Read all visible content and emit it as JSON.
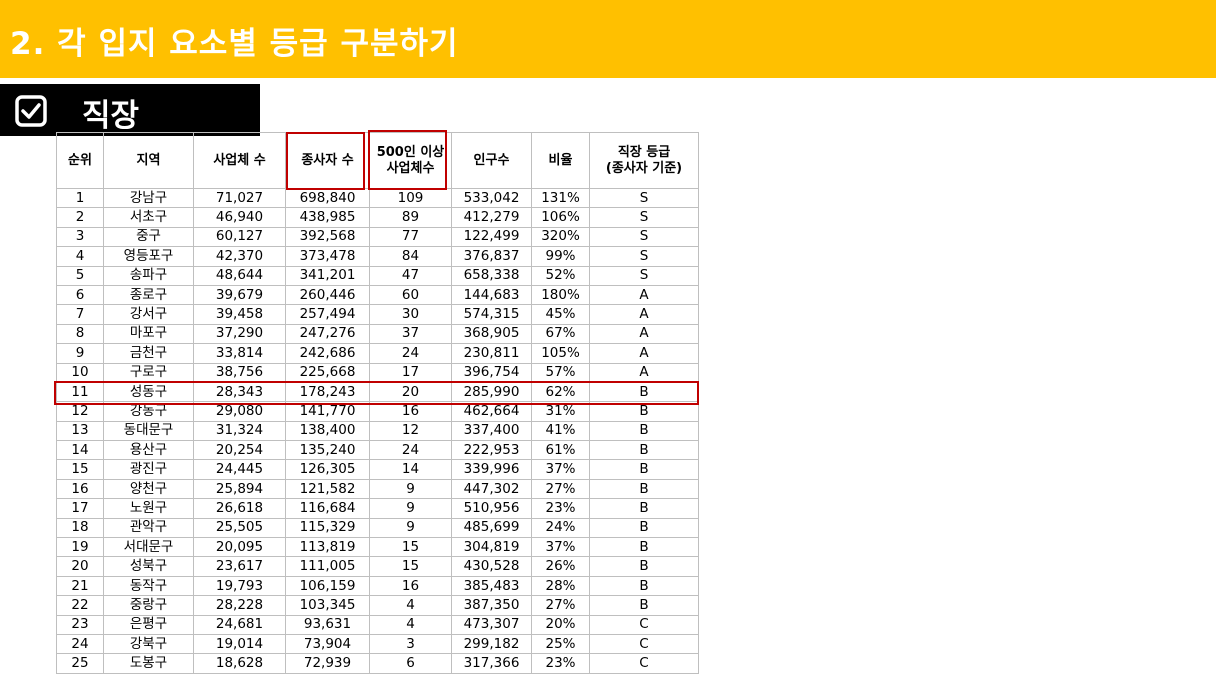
{
  "slide": {
    "title": "2. 각 입지 요소별 등급 구분하기",
    "section_label": "직장",
    "accent_color": "#FFC000",
    "highlight_color": "#C00000",
    "section_icon": "checkbox-checked-icon"
  },
  "table": {
    "headers": [
      "순위",
      "지역",
      "사업체 수",
      "종사자 수",
      "500인 이상\n사업체수",
      "인구수",
      "비율",
      "직장 등급\n(종사자 기준)"
    ],
    "highlighted_columns": [
      "종사자 수",
      "500인 이상 사업체수"
    ],
    "highlighted_row_rank": "11",
    "rows": [
      [
        "1",
        "강남구",
        "71,027",
        "698,840",
        "109",
        "533,042",
        "131%",
        "S"
      ],
      [
        "2",
        "서초구",
        "46,940",
        "438,985",
        "89",
        "412,279",
        "106%",
        "S"
      ],
      [
        "3",
        "중구",
        "60,127",
        "392,568",
        "77",
        "122,499",
        "320%",
        "S"
      ],
      [
        "4",
        "영등포구",
        "42,370",
        "373,478",
        "84",
        "376,837",
        "99%",
        "S"
      ],
      [
        "5",
        "송파구",
        "48,644",
        "341,201",
        "47",
        "658,338",
        "52%",
        "S"
      ],
      [
        "6",
        "종로구",
        "39,679",
        "260,446",
        "60",
        "144,683",
        "180%",
        "A"
      ],
      [
        "7",
        "강서구",
        "39,458",
        "257,494",
        "30",
        "574,315",
        "45%",
        "A"
      ],
      [
        "8",
        "마포구",
        "37,290",
        "247,276",
        "37",
        "368,905",
        "67%",
        "A"
      ],
      [
        "9",
        "금천구",
        "33,814",
        "242,686",
        "24",
        "230,811",
        "105%",
        "A"
      ],
      [
        "10",
        "구로구",
        "38,756",
        "225,668",
        "17",
        "396,754",
        "57%",
        "A"
      ],
      [
        "11",
        "성동구",
        "28,343",
        "178,243",
        "20",
        "285,990",
        "62%",
        "B"
      ],
      [
        "12",
        "강동구",
        "29,080",
        "141,770",
        "16",
        "462,664",
        "31%",
        "B"
      ],
      [
        "13",
        "동대문구",
        "31,324",
        "138,400",
        "12",
        "337,400",
        "41%",
        "B"
      ],
      [
        "14",
        "용산구",
        "20,254",
        "135,240",
        "24",
        "222,953",
        "61%",
        "B"
      ],
      [
        "15",
        "광진구",
        "24,445",
        "126,305",
        "14",
        "339,996",
        "37%",
        "B"
      ],
      [
        "16",
        "양천구",
        "25,894",
        "121,582",
        "9",
        "447,302",
        "27%",
        "B"
      ],
      [
        "17",
        "노원구",
        "26,618",
        "116,684",
        "9",
        "510,956",
        "23%",
        "B"
      ],
      [
        "18",
        "관악구",
        "25,505",
        "115,329",
        "9",
        "485,699",
        "24%",
        "B"
      ],
      [
        "19",
        "서대문구",
        "20,095",
        "113,819",
        "15",
        "304,819",
        "37%",
        "B"
      ],
      [
        "20",
        "성북구",
        "23,617",
        "111,005",
        "15",
        "430,528",
        "26%",
        "B"
      ],
      [
        "21",
        "동작구",
        "19,793",
        "106,159",
        "16",
        "385,483",
        "28%",
        "B"
      ],
      [
        "22",
        "중랑구",
        "28,228",
        "103,345",
        "4",
        "387,350",
        "27%",
        "B"
      ],
      [
        "23",
        "은평구",
        "24,681",
        "93,631",
        "4",
        "473,307",
        "20%",
        "C"
      ],
      [
        "24",
        "강북구",
        "19,014",
        "73,904",
        "3",
        "299,182",
        "25%",
        "C"
      ],
      [
        "25",
        "도봉구",
        "18,628",
        "72,939",
        "6",
        "317,366",
        "23%",
        "C"
      ]
    ]
  }
}
